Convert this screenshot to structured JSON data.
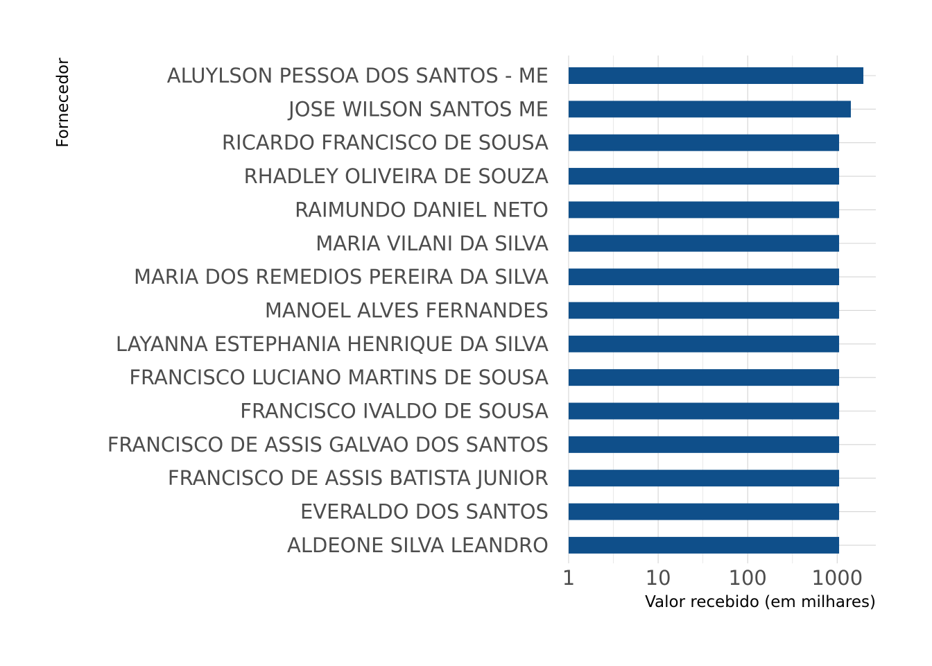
{
  "chart_data": {
    "type": "bar",
    "orientation": "horizontal",
    "xlabel": "Valor recebido (em milhares)",
    "ylabel": "Fornecedor",
    "x_scale": "log10",
    "xlim": [
      1,
      2700
    ],
    "x_ticks": [
      1,
      10,
      100,
      1000
    ],
    "x_tick_labels": [
      "1",
      "10",
      "100",
      "1000"
    ],
    "grid": true,
    "legend": "none",
    "bar_color": "#0f4f8a",
    "categories": [
      "ALUYLSON PESSOA DOS SANTOS - ME",
      "JOSE WILSON SANTOS ME",
      "RICARDO FRANCISCO DE SOUSA",
      "RHADLEY OLIVEIRA DE SOUZA",
      "RAIMUNDO DANIEL NETO",
      "MARIA VILANI DA SILVA",
      "MARIA DOS REMEDIOS PEREIRA DA SILVA",
      "MANOEL ALVES FERNANDES",
      "LAYANNA ESTEPHANIA HENRIQUE DA SILVA",
      "FRANCISCO LUCIANO MARTINS DE SOUSA",
      "FRANCISCO IVALDO DE SOUSA",
      "FRANCISCO DE ASSIS GALVAO DOS SANTOS",
      "FRANCISCO DE ASSIS BATISTA JUNIOR",
      "EVERALDO DOS SANTOS",
      "ALDEONE SILVA LEANDRO"
    ],
    "values": [
      1960,
      1420,
      1050,
      1050,
      1050,
      1050,
      1050,
      1050,
      1050,
      1050,
      1050,
      1050,
      1050,
      1050,
      1050
    ]
  }
}
